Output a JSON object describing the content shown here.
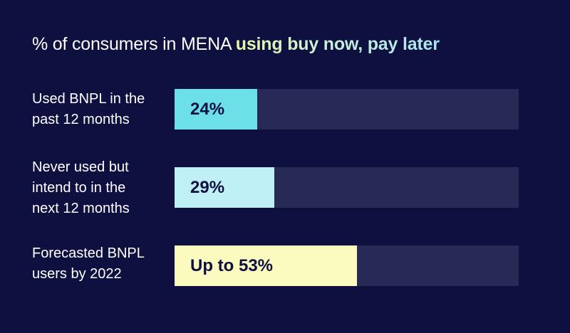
{
  "title": {
    "plain": "% of consumers in MENA ",
    "highlight": "using buy now, pay later"
  },
  "colors": {
    "background": "#0e1040",
    "track": "#262a55",
    "bar_1": "#6ddfe6",
    "bar_2": "#bff0f5",
    "bar_3": "#fbfbc0",
    "value_text": "#0e1040"
  },
  "chart_data": {
    "type": "bar",
    "orientation": "horizontal",
    "title": "% of consumers in MENA using buy now, pay later",
    "categories": [
      "Used BNPL in the past 12 months",
      "Never used but intend to in the next 12 months",
      "Forecasted BNPL users by 2022"
    ],
    "values": [
      24,
      29,
      53
    ],
    "value_labels": [
      "24%",
      "29%",
      "Up to 53%"
    ],
    "xlim": [
      0,
      100
    ],
    "grid": false,
    "legend": "none"
  },
  "rows": [
    {
      "label": "Used BNPL in the\npast 12 months",
      "value_label": "24%"
    },
    {
      "label": "Never used but\nintend to in the\nnext 12 months",
      "value_label": "29%"
    },
    {
      "label": "Forecasted BNPL\nusers by 2022",
      "value_label": "Up to 53%"
    }
  ]
}
